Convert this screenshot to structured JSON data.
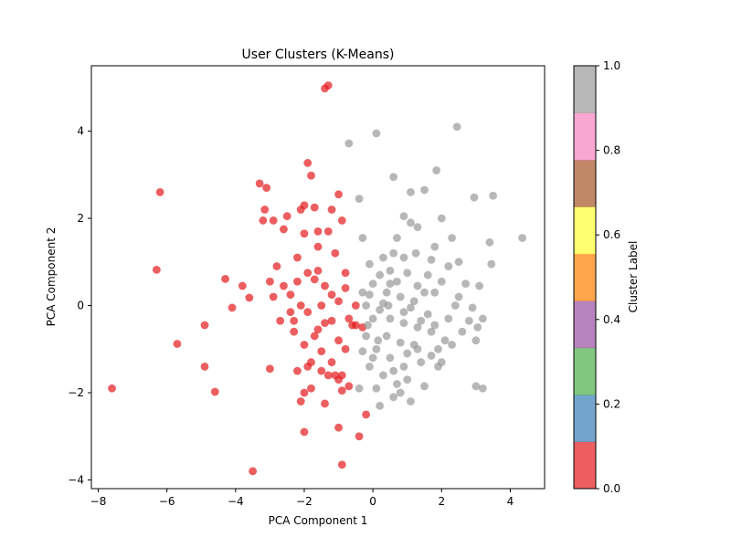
{
  "chart_data": {
    "type": "scatter",
    "title": "User Clusters (K-Means)",
    "xlabel": "PCA Component 1",
    "ylabel": "PCA Component 2",
    "xlim": [
      -8.2,
      5.0
    ],
    "ylim": [
      -4.2,
      5.5
    ],
    "xticks": [
      -8,
      -6,
      -4,
      -2,
      0,
      2,
      4
    ],
    "yticks": [
      -4,
      -2,
      0,
      2,
      4
    ],
    "grid": false,
    "colorbar": {
      "label": "Cluster Label",
      "range": [
        0.0,
        1.0
      ],
      "ticks": [
        "0.0",
        "0.2",
        "0.4",
        "0.6",
        "0.8",
        "1.0"
      ],
      "colors": [
        "#e41a1c",
        "#377eb8",
        "#4daf4a",
        "#984ea3",
        "#ff7f00",
        "#ffff33",
        "#a65628",
        "#f781bf",
        "#999999"
      ]
    },
    "series": [
      {
        "cluster": 0,
        "color": "#e41a1c",
        "points": [
          [
            -1.3,
            5.05
          ],
          [
            -1.4,
            4.98
          ],
          [
            -6.2,
            2.6
          ],
          [
            -7.6,
            -1.9
          ],
          [
            -6.3,
            0.82
          ],
          [
            -5.7,
            -0.88
          ],
          [
            -4.9,
            -0.45
          ],
          [
            -4.9,
            -1.4
          ],
          [
            -4.6,
            -1.98
          ],
          [
            -4.3,
            0.61
          ],
          [
            -4.1,
            -0.05
          ],
          [
            -3.8,
            0.45
          ],
          [
            -3.6,
            0.18
          ],
          [
            -3.5,
            -3.8
          ],
          [
            -3.3,
            2.8
          ],
          [
            -3.2,
            1.95
          ],
          [
            -3.1,
            2.7
          ],
          [
            -3.15,
            2.2
          ],
          [
            -2.9,
            1.95
          ],
          [
            -2.8,
            0.9
          ],
          [
            -2.7,
            -0.35
          ],
          [
            -2.6,
            1.75
          ],
          [
            -2.5,
            2.05
          ],
          [
            -2.4,
            -0.15
          ],
          [
            -2.3,
            -0.35
          ],
          [
            -2.2,
            1.1
          ],
          [
            -2.1,
            2.2
          ],
          [
            -2.0,
            1.65
          ],
          [
            -2.0,
            2.3
          ],
          [
            -1.9,
            3.27
          ],
          [
            -1.8,
            2.98
          ],
          [
            -1.7,
            2.25
          ],
          [
            -1.6,
            1.7
          ],
          [
            -1.6,
            1.35
          ],
          [
            -1.5,
            0.0
          ],
          [
            -1.4,
            -0.4
          ],
          [
            -1.3,
            1.7
          ],
          [
            -1.2,
            2.2
          ],
          [
            -1.1,
            1.2
          ],
          [
            -1.0,
            2.55
          ],
          [
            -0.9,
            1.95
          ],
          [
            -0.8,
            0.75
          ],
          [
            -0.7,
            -0.3
          ],
          [
            -3.0,
            -1.45
          ],
          [
            -2.2,
            -1.5
          ],
          [
            -2.0,
            -0.9
          ],
          [
            -1.9,
            -1.4
          ],
          [
            -1.8,
            -1.9
          ],
          [
            -1.7,
            -0.7
          ],
          [
            -1.5,
            -1.5
          ],
          [
            -1.3,
            -1.6
          ],
          [
            -1.1,
            -1.6
          ],
          [
            -1.0,
            -1.7
          ],
          [
            -0.9,
            -1.95
          ],
          [
            -0.7,
            -1.85
          ],
          [
            -0.5,
            -0.45
          ],
          [
            -0.3,
            -0.5
          ],
          [
            -0.2,
            -2.5
          ],
          [
            -0.4,
            -3.0
          ],
          [
            -0.9,
            -3.65
          ],
          [
            -1.0,
            -2.8
          ],
          [
            -1.4,
            -2.25
          ],
          [
            -2.0,
            -2.9
          ],
          [
            -2.1,
            -2.2
          ],
          [
            -2.0,
            -2.0
          ],
          [
            -1.6,
            -0.55
          ],
          [
            -1.2,
            -0.35
          ],
          [
            -1.0,
            -0.8
          ],
          [
            -0.8,
            -1.0
          ],
          [
            -0.6,
            -0.45
          ],
          [
            -0.5,
            0.0
          ],
          [
            -0.8,
            0.4
          ],
          [
            -1.0,
            0.1
          ],
          [
            -1.2,
            0.25
          ],
          [
            -1.4,
            0.45
          ],
          [
            -1.7,
            0.6
          ],
          [
            -1.9,
            0.75
          ],
          [
            -2.2,
            0.55
          ],
          [
            -2.4,
            0.25
          ],
          [
            -2.6,
            0.45
          ],
          [
            -2.9,
            0.2
          ],
          [
            -3.0,
            0.55
          ],
          [
            -1.8,
            -1.3
          ],
          [
            -1.5,
            -1.05
          ],
          [
            -1.2,
            -1.3
          ],
          [
            -0.9,
            -1.6
          ],
          [
            -2.1,
            0.0
          ],
          [
            -2.3,
            -0.6
          ],
          [
            -1.9,
            -0.15
          ],
          [
            -1.6,
            0.8
          ]
        ]
      },
      {
        "cluster": 1,
        "color": "#999999",
        "points": [
          [
            2.45,
            4.1
          ],
          [
            0.1,
            3.95
          ],
          [
            -0.7,
            3.72
          ],
          [
            1.85,
            3.1
          ],
          [
            0.6,
            2.95
          ],
          [
            1.5,
            2.65
          ],
          [
            1.1,
            2.6
          ],
          [
            2.95,
            2.48
          ],
          [
            3.5,
            2.52
          ],
          [
            -0.4,
            2.45
          ],
          [
            0.9,
            2.05
          ],
          [
            1.1,
            1.9
          ],
          [
            1.3,
            1.8
          ],
          [
            2.0,
            2.0
          ],
          [
            0.7,
            1.55
          ],
          [
            -0.3,
            1.55
          ],
          [
            1.25,
            1.2
          ],
          [
            1.8,
            1.35
          ],
          [
            2.3,
            1.55
          ],
          [
            3.4,
            1.45
          ],
          [
            4.35,
            1.55
          ],
          [
            0.6,
            1.2
          ],
          [
            0.3,
            1.1
          ],
          [
            -0.1,
            0.95
          ],
          [
            0.5,
            0.8
          ],
          [
            1.0,
            0.75
          ],
          [
            1.6,
            0.7
          ],
          [
            2.2,
            0.9
          ],
          [
            2.7,
            0.5
          ],
          [
            3.1,
            0.45
          ],
          [
            3.45,
            0.95
          ],
          [
            0.0,
            0.5
          ],
          [
            0.4,
            0.3
          ],
          [
            0.8,
            0.2
          ],
          [
            1.2,
            0.1
          ],
          [
            1.8,
            0.3
          ],
          [
            2.4,
            0.0
          ],
          [
            2.9,
            -0.05
          ],
          [
            3.2,
            -0.3
          ],
          [
            0.2,
            -0.1
          ],
          [
            0.5,
            -0.3
          ],
          [
            0.9,
            -0.4
          ],
          [
            1.3,
            -0.5
          ],
          [
            1.7,
            -0.6
          ],
          [
            2.2,
            -0.3
          ],
          [
            2.6,
            -0.6
          ],
          [
            3.0,
            -0.8
          ],
          [
            -0.2,
            -0.7
          ],
          [
            0.1,
            -1.0
          ],
          [
            0.5,
            -1.2
          ],
          [
            0.9,
            -1.4
          ],
          [
            1.4,
            -1.3
          ],
          [
            1.9,
            -1.0
          ],
          [
            -0.1,
            -1.4
          ],
          [
            0.3,
            -1.6
          ],
          [
            0.7,
            -1.8
          ],
          [
            1.0,
            -1.7
          ],
          [
            1.5,
            -1.85
          ],
          [
            3.0,
            -1.85
          ],
          [
            3.2,
            -1.9
          ],
          [
            0.1,
            -1.9
          ],
          [
            0.6,
            -2.1
          ],
          [
            1.1,
            -2.2
          ],
          [
            -0.4,
            -1.9
          ],
          [
            0.2,
            -2.3
          ],
          [
            0.8,
            -2.0
          ],
          [
            1.3,
            -1.0
          ],
          [
            0.0,
            -0.3
          ],
          [
            -0.3,
            0.3
          ],
          [
            0.7,
            0.55
          ],
          [
            1.5,
            0.3
          ],
          [
            2.0,
            0.55
          ],
          [
            2.5,
            0.2
          ],
          [
            1.1,
            -0.05
          ],
          [
            0.3,
            0.05
          ],
          [
            -0.2,
            0.0
          ],
          [
            1.6,
            -0.2
          ],
          [
            2.1,
            -0.8
          ],
          [
            1.9,
            -1.4
          ],
          [
            0.4,
            -0.7
          ],
          [
            0.8,
            -0.85
          ],
          [
            1.2,
            -0.9
          ],
          [
            1.7,
            -1.15
          ],
          [
            2.3,
            -0.9
          ],
          [
            2.8,
            -0.35
          ],
          [
            0.0,
            -1.2
          ],
          [
            -0.3,
            -1.05
          ],
          [
            0.6,
            -1.5
          ],
          [
            1.0,
            -1.1
          ],
          [
            1.4,
            -0.35
          ],
          [
            2.5,
            1.0
          ],
          [
            1.7,
            1.05
          ],
          [
            0.9,
            1.1
          ],
          [
            0.2,
            0.7
          ],
          [
            -0.1,
            0.25
          ],
          [
            0.5,
            0.5
          ],
          [
            1.3,
            0.45
          ],
          [
            0.9,
            -0.15
          ],
          [
            -0.15,
            -0.45
          ],
          [
            0.15,
            -0.8
          ],
          [
            0.45,
            0.0
          ],
          [
            1.8,
            -0.45
          ],
          [
            2.0,
            -1.3
          ],
          [
            3.05,
            -0.5
          ]
        ]
      }
    ]
  }
}
